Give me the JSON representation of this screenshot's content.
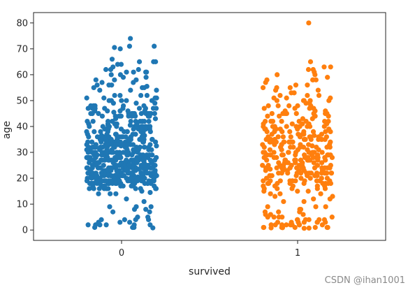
{
  "chart_data": {
    "type": "scatter",
    "subtype": "strip",
    "xlabel": "survived",
    "ylabel": "age",
    "categories": [
      "0",
      "1"
    ],
    "ylim": [
      -4,
      84
    ],
    "yticks": [
      0,
      10,
      20,
      30,
      40,
      50,
      60,
      70,
      80
    ],
    "grid": false,
    "jitter": 0.2,
    "series": [
      {
        "category": "0",
        "color": "#1f77b4",
        "values": [
          22,
          38,
          35,
          54,
          2,
          27,
          14,
          4,
          58,
          20,
          39,
          14,
          55,
          2,
          31,
          35,
          34,
          15,
          28,
          8,
          38,
          19,
          40,
          66,
          28,
          42,
          21,
          18,
          14,
          40,
          27,
          3,
          19,
          18,
          7,
          21,
          49,
          29,
          65,
          21,
          28.5,
          5,
          11,
          22,
          38,
          45,
          4,
          29,
          19,
          17,
          26,
          32,
          16,
          21,
          26,
          32,
          25,
          0.83,
          30,
          22,
          29,
          28,
          17,
          33,
          16,
          23,
          24,
          29,
          20,
          46,
          26,
          59,
          71,
          23,
          34,
          34,
          28,
          21,
          33,
          37,
          28,
          21,
          38,
          47,
          14.5,
          22,
          20,
          17,
          21,
          70.5,
          29,
          24,
          2,
          21,
          32.5,
          32.5,
          54,
          12,
          24,
          45,
          33,
          20,
          47,
          29,
          25,
          23,
          19,
          37,
          16,
          24,
          22,
          24,
          19,
          18,
          19,
          27,
          9,
          36.5,
          42,
          51,
          22,
          55.5,
          40.5,
          51,
          16,
          30,
          44,
          40,
          26,
          17,
          1,
          9,
          45,
          28,
          61,
          4,
          1,
          21,
          56,
          18,
          50,
          30,
          36,
          9,
          1,
          4,
          45,
          40,
          36,
          32,
          19,
          19,
          3,
          44,
          58,
          42,
          24,
          28,
          34,
          45.5,
          18,
          2,
          32,
          26,
          16,
          40,
          24,
          35,
          22,
          30,
          31,
          27,
          42,
          32,
          30,
          16,
          27,
          51,
          38,
          22,
          19,
          20.5,
          18,
          35,
          29,
          59,
          5,
          24,
          44,
          8,
          19,
          33,
          29,
          22,
          30,
          44,
          25,
          24,
          37,
          54,
          29,
          62,
          30,
          41,
          29,
          30,
          35,
          50,
          3,
          52,
          40,
          36,
          16,
          25,
          58,
          35,
          25,
          41,
          37,
          63,
          45,
          7,
          35,
          65,
          28,
          16,
          19,
          33,
          30,
          22,
          42,
          22,
          26,
          19,
          36,
          24,
          24,
          23.5,
          2,
          19,
          30,
          32,
          30,
          47,
          48,
          45,
          32,
          48,
          36,
          27,
          40,
          39,
          50,
          29,
          24,
          26,
          31,
          36,
          18,
          42,
          28,
          19,
          29,
          32,
          25,
          21,
          25,
          39,
          45,
          18,
          74,
          2,
          20,
          40,
          30,
          45,
          50,
          27,
          32,
          21,
          38,
          35,
          22,
          40.5,
          34,
          26,
          23,
          32,
          38,
          37,
          22,
          47,
          21,
          24,
          40,
          35,
          39,
          26,
          28,
          36,
          27,
          21,
          28,
          23,
          30,
          36,
          42,
          41,
          34,
          27,
          18,
          26,
          25,
          64,
          40,
          38,
          48,
          43,
          34,
          30,
          23,
          39,
          20,
          25,
          65,
          29,
          61,
          33,
          24,
          21,
          31,
          22,
          33,
          44,
          28,
          25,
          46,
          56,
          28,
          41,
          64,
          31,
          26,
          36,
          33,
          34,
          20,
          22,
          34,
          17,
          19,
          23,
          47,
          61,
          18,
          52,
          24,
          22,
          18,
          45,
          46,
          50,
          37,
          34,
          62,
          39,
          22,
          18,
          55,
          35,
          39,
          27,
          34,
          18,
          28,
          20,
          27,
          34,
          42,
          22,
          24,
          20,
          28,
          22,
          36.5,
          70,
          32,
          52,
          37,
          29,
          21,
          33,
          25,
          34,
          18,
          27,
          39,
          30,
          17,
          19,
          21,
          31,
          48,
          30,
          24,
          40,
          60,
          20,
          28,
          27,
          56,
          25,
          18,
          20,
          29,
          45,
          33,
          36,
          23,
          44,
          35,
          18,
          31,
          52,
          19,
          23,
          22,
          23,
          27,
          60,
          21,
          26,
          17,
          28,
          32,
          23,
          55,
          24,
          45,
          71,
          25,
          47,
          24,
          32,
          31,
          19,
          20,
          47,
          33,
          21,
          25,
          46,
          19,
          24,
          47,
          46,
          29,
          22,
          20,
          30,
          57,
          28,
          27,
          20,
          26,
          21,
          31,
          57,
          19,
          26,
          32,
          24,
          62,
          32,
          44,
          47,
          29,
          32,
          19,
          25,
          21,
          48,
          34,
          20,
          38,
          26,
          24,
          36,
          31,
          33,
          49,
          30,
          18,
          28,
          23,
          39,
          21,
          28,
          23,
          24,
          35,
          30,
          27,
          19,
          18,
          32,
          33,
          51,
          33,
          31,
          33,
          25,
          20,
          25,
          33,
          22,
          41,
          22,
          38,
          39,
          45,
          16,
          42,
          26,
          25,
          22,
          36,
          23,
          24,
          30,
          26,
          27,
          19,
          25,
          36,
          40,
          21,
          34,
          16,
          45,
          36,
          28,
          20,
          43,
          19,
          25,
          17,
          22,
          30,
          40,
          18,
          61,
          27,
          28,
          45,
          21,
          42,
          32,
          24,
          26,
          18,
          23,
          44,
          19,
          49,
          44,
          19,
          20,
          30,
          27,
          23,
          44,
          33,
          17,
          22
        ]
      },
      {
        "category": "1",
        "color": "#ff7f0e",
        "values": [
          38,
          26,
          35,
          27,
          14,
          4,
          58,
          55,
          34,
          15,
          28,
          38,
          19,
          34,
          49,
          29,
          21,
          5,
          38,
          29,
          17,
          32,
          0.83,
          30,
          29,
          17,
          33,
          23,
          23,
          34,
          21,
          32.5,
          12,
          24,
          45,
          29,
          19,
          22,
          24,
          19,
          27,
          9,
          36.5,
          42,
          51,
          22,
          40,
          1,
          4,
          45,
          40,
          36,
          32,
          19,
          3,
          44,
          58,
          42,
          24,
          28,
          34,
          18,
          2,
          32,
          26,
          16,
          40,
          24,
          35,
          22,
          30,
          31,
          27,
          42,
          32,
          16,
          27,
          51,
          38,
          22,
          19,
          35,
          29,
          59,
          5,
          24,
          44,
          8,
          19,
          33,
          29,
          22,
          30,
          44,
          25,
          24,
          37,
          54,
          29,
          62,
          30,
          41,
          29,
          30,
          35,
          50,
          3,
          52,
          40,
          36,
          16,
          25,
          58,
          35,
          25,
          41,
          37,
          63,
          45,
          7,
          35,
          65,
          28,
          16,
          19,
          33,
          30,
          22,
          42,
          22,
          26,
          19,
          36,
          24,
          24,
          23.5,
          2,
          19,
          30,
          32,
          30,
          47,
          48,
          45,
          32,
          48,
          36,
          27,
          40,
          39,
          50,
          29,
          24,
          26,
          31,
          36,
          18,
          42,
          28,
          19,
          29,
          32,
          25,
          21,
          25,
          39,
          45,
          18,
          2,
          20,
          40,
          30,
          45,
          50,
          27,
          32,
          21,
          38,
          35,
          22,
          34,
          26,
          23,
          32,
          38,
          37,
          22,
          47,
          21,
          24,
          40,
          35,
          39,
          26,
          28,
          36,
          27,
          21,
          28,
          23,
          30,
          36,
          42,
          41,
          34,
          27,
          18,
          26,
          25,
          40,
          38,
          48,
          43,
          34,
          30,
          23,
          39,
          20,
          25,
          29,
          61,
          33,
          24,
          21,
          31,
          22,
          33,
          44,
          28,
          25,
          46,
          56,
          28,
          41,
          31,
          26,
          36,
          33,
          34,
          20,
          22,
          34,
          17,
          19,
          23,
          47,
          18,
          52,
          24,
          22,
          18,
          45,
          46,
          50,
          37,
          34,
          62,
          39,
          22,
          18,
          55,
          35,
          39,
          27,
          34,
          18,
          28,
          20,
          27,
          34,
          42,
          22,
          24,
          20,
          28,
          22,
          80,
          53,
          60,
          48,
          1,
          3,
          4,
          6,
          2,
          1,
          0.92,
          11,
          5,
          7,
          3,
          2,
          9,
          0.75,
          1,
          4,
          2,
          15,
          14,
          13,
          17,
          6,
          8,
          3,
          2,
          1,
          5,
          4,
          0.67,
          2,
          9,
          1,
          3,
          5,
          4,
          7,
          2,
          1,
          6,
          3,
          15,
          16,
          14,
          13,
          17,
          18,
          12,
          11,
          22,
          24,
          25,
          27,
          29,
          31,
          33,
          35,
          36,
          37,
          38,
          39,
          40,
          41,
          42,
          43,
          44,
          45,
          46,
          47,
          48,
          49,
          50,
          51,
          52,
          53,
          54,
          55,
          56,
          57,
          58,
          60,
          63
        ]
      }
    ]
  },
  "watermark": "CSDN @ihan1001"
}
